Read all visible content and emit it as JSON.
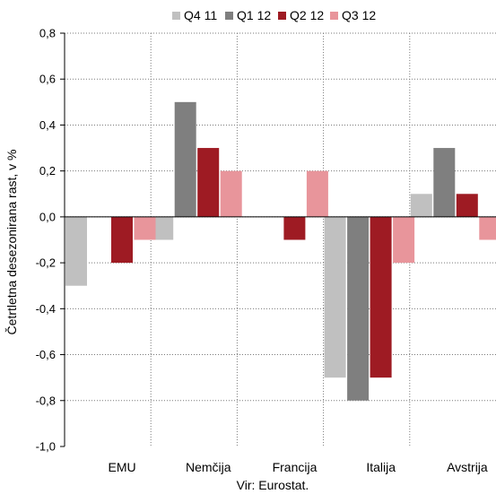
{
  "chart_data": {
    "type": "bar",
    "categories": [
      "EMU",
      "Nemčija",
      "Francija",
      "Italija",
      "Avstrija"
    ],
    "series": [
      {
        "name": "Q4 11",
        "color": "#c0c0c0",
        "values": [
          -0.3,
          -0.1,
          0.0,
          -0.7,
          0.1
        ]
      },
      {
        "name": "Q1 12",
        "color": "#7f7f7f",
        "values": [
          0.0,
          0.5,
          0.0,
          -0.8,
          0.3
        ]
      },
      {
        "name": "Q2 12",
        "color": "#9e1b23",
        "values": [
          -0.2,
          0.3,
          -0.1,
          -0.7,
          0.1
        ]
      },
      {
        "name": "Q3 12",
        "color": "#e8959b",
        "values": [
          -0.1,
          0.2,
          0.2,
          -0.2,
          -0.1
        ]
      }
    ],
    "ylabel": "Četrtletna desezonirana rast, v %",
    "ylim": [
      -1.0,
      0.8
    ],
    "yticks": [
      "0,8",
      "0,6",
      "0,4",
      "0,2",
      "0,0",
      "-0,2",
      "-0,4",
      "-0,6",
      "-0,8",
      "-1,0"
    ],
    "grid": true,
    "legend": "top",
    "source": "Vir: Eurostat."
  }
}
